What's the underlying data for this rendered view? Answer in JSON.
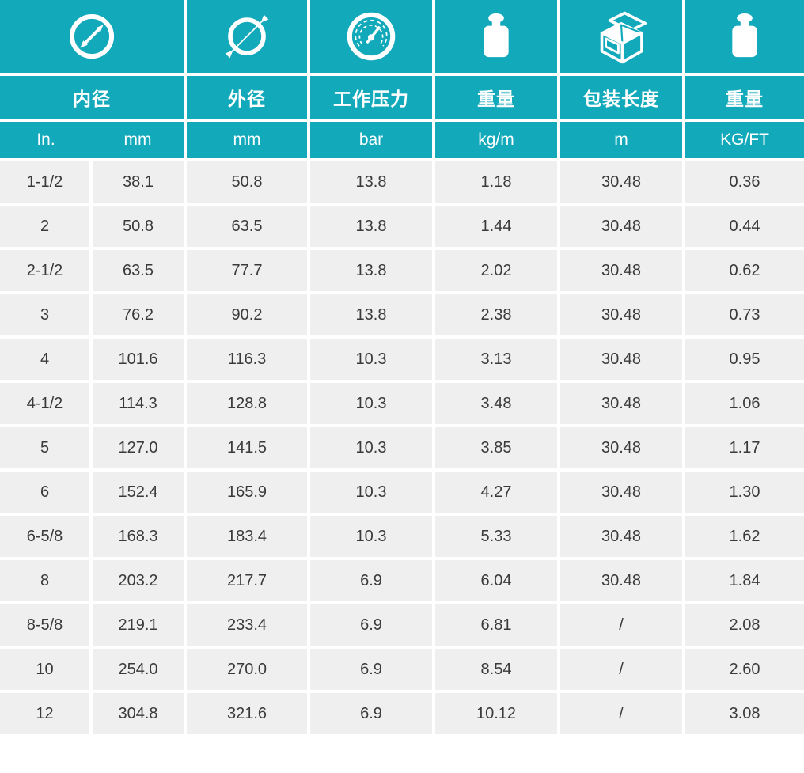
{
  "colors": {
    "teal": "#12a9bb",
    "cell_gray": "#efefef",
    "data_text": "#3a3a3a",
    "background": "#ffffff"
  },
  "table": {
    "columns": [
      {
        "label": "内径",
        "icon": "inner-diameter-icon",
        "units": [
          "In.",
          "mm"
        ]
      },
      {
        "label": "外径",
        "icon": "outer-diameter-icon",
        "unit": "mm"
      },
      {
        "label": "工作压力",
        "icon": "pressure-gauge-icon",
        "unit": "bar"
      },
      {
        "label": "重量",
        "icon": "weight-icon",
        "unit": "kg/m"
      },
      {
        "label": "包装长度",
        "icon": "package-box-icon",
        "unit": "m"
      },
      {
        "label": "重量",
        "icon": "weight-icon",
        "unit": "KG/FT"
      }
    ],
    "rows": [
      [
        "1-1/2",
        "38.1",
        "50.8",
        "13.8",
        "1.18",
        "30.48",
        "0.36"
      ],
      [
        "2",
        "50.8",
        "63.5",
        "13.8",
        "1.44",
        "30.48",
        "0.44"
      ],
      [
        "2-1/2",
        "63.5",
        "77.7",
        "13.8",
        "2.02",
        "30.48",
        "0.62"
      ],
      [
        "3",
        "76.2",
        "90.2",
        "13.8",
        "2.38",
        "30.48",
        "0.73"
      ],
      [
        "4",
        "101.6",
        "116.3",
        "10.3",
        "3.13",
        "30.48",
        "0.95"
      ],
      [
        "4-1/2",
        "114.3",
        "128.8",
        "10.3",
        "3.48",
        "30.48",
        "1.06"
      ],
      [
        "5",
        "127.0",
        "141.5",
        "10.3",
        "3.85",
        "30.48",
        "1.17"
      ],
      [
        "6",
        "152.4",
        "165.9",
        "10.3",
        "4.27",
        "30.48",
        "1.30"
      ],
      [
        "6-5/8",
        "168.3",
        "183.4",
        "10.3",
        "5.33",
        "30.48",
        "1.62"
      ],
      [
        "8",
        "203.2",
        "217.7",
        "6.9",
        "6.04",
        "30.48",
        "1.84"
      ],
      [
        "8-5/8",
        "219.1",
        "233.4",
        "6.9",
        "6.81",
        "/",
        "2.08"
      ],
      [
        "10",
        "254.0",
        "270.0",
        "6.9",
        "8.54",
        "/",
        "2.60"
      ],
      [
        "12",
        "304.8",
        "321.6",
        "6.9",
        "10.12",
        "/",
        "3.08"
      ]
    ]
  }
}
